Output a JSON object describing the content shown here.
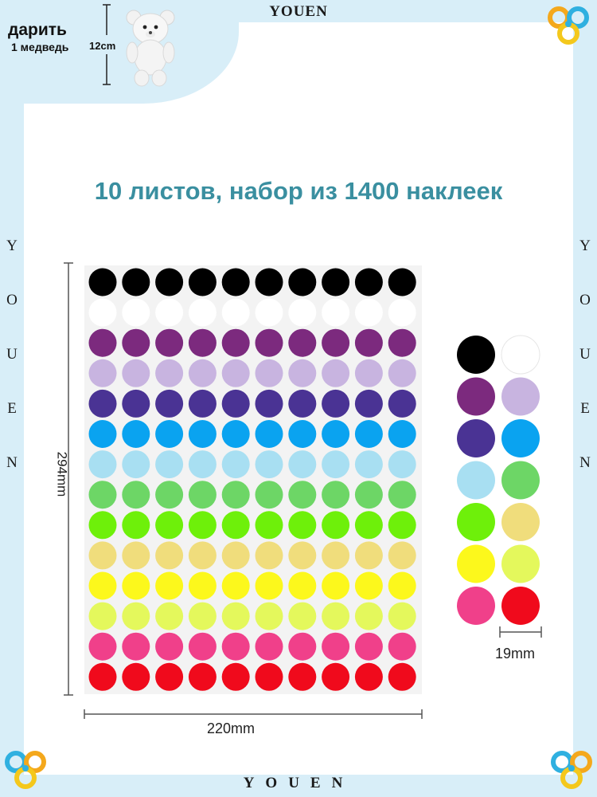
{
  "brand": {
    "top": "YOUEN",
    "bottom": "YOUEN",
    "side_letters": [
      "Y",
      "O",
      "U",
      "E",
      "N"
    ]
  },
  "gift": {
    "line1": "дарить",
    "line2": "1 медведь",
    "height": "12cm"
  },
  "title": "10 листов, набор из 1400 наклеек",
  "dimensions": {
    "height": "294mm",
    "width": "220mm",
    "dot": "19mm"
  },
  "sheet": {
    "columns": 10,
    "rows": 14
  },
  "colors": [
    {
      "name": "black",
      "hex": "#000000"
    },
    {
      "name": "white",
      "hex": "#ffffff"
    },
    {
      "name": "purple",
      "hex": "#7c2a7e"
    },
    {
      "name": "lavender",
      "hex": "#c8b4e0"
    },
    {
      "name": "indigo",
      "hex": "#4a3394"
    },
    {
      "name": "sky-blue",
      "hex": "#0aa3f0"
    },
    {
      "name": "light-blue",
      "hex": "#a8dff2"
    },
    {
      "name": "green",
      "hex": "#6dd666"
    },
    {
      "name": "lime",
      "hex": "#6ef00a"
    },
    {
      "name": "light-yellow",
      "hex": "#f0dd7c"
    },
    {
      "name": "yellow",
      "hex": "#fcf81c"
    },
    {
      "name": "yellow-green",
      "hex": "#e4f85c"
    },
    {
      "name": "pink",
      "hex": "#f0408a"
    },
    {
      "name": "red",
      "hex": "#f00a1c"
    }
  ],
  "swatch_order": [
    0,
    1,
    2,
    3,
    4,
    5,
    6,
    7,
    8,
    9,
    10,
    11,
    12,
    13
  ]
}
